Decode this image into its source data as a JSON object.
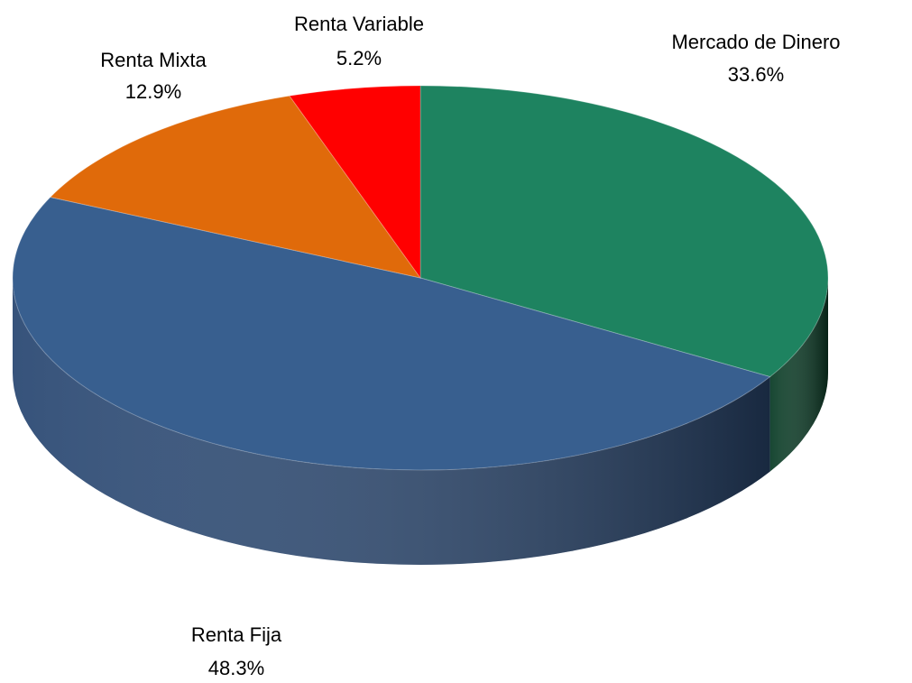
{
  "chart_data": {
    "type": "pie",
    "categories": [
      "Mercado de Dinero",
      "Renta Fija",
      "Renta Mixta",
      "Renta Variable"
    ],
    "values": [
      33.6,
      48.3,
      12.9,
      5.2
    ],
    "value_labels": [
      "33.6%",
      "48.3%",
      "12.9%",
      "5.2%"
    ],
    "colors": [
      "#1e8360",
      "#385f8f",
      "#e06a0a",
      "#ff0000"
    ]
  }
}
